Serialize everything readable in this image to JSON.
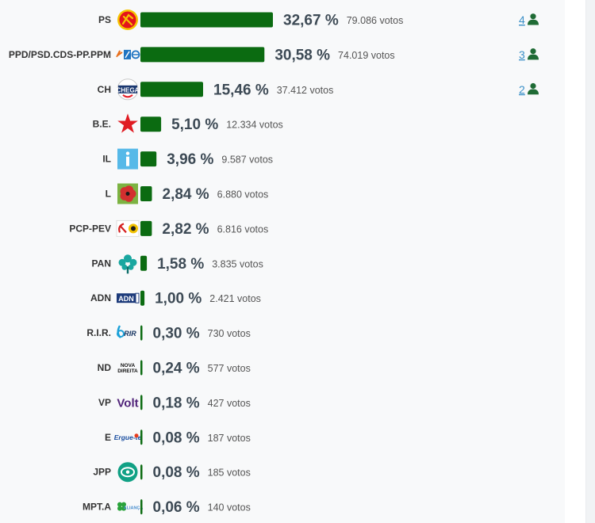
{
  "bar_color": "#0b6b11",
  "seat_icon_color": "#1f6b35",
  "seat_link_color": "#3a8fc7",
  "chart_data": {
    "type": "bar",
    "orientation": "horizontal",
    "xlim": [
      0,
      32.67
    ],
    "categories": [
      "PS",
      "PPD/PSD.CDS-PP.PPM",
      "CH",
      "B.E.",
      "IL",
      "L",
      "PCP-PEV",
      "PAN",
      "ADN",
      "R.I.R.",
      "ND",
      "VP",
      "E",
      "JPP",
      "MPT.A"
    ],
    "percent_labels": [
      "32,67 %",
      "30,58 %",
      "15,46 %",
      "5,10 %",
      "3,96 %",
      "2,84 %",
      "2,82 %",
      "1,58 %",
      "1,00 %",
      "0,30 %",
      "0,24 %",
      "0,18 %",
      "0,08 %",
      "0,08 %",
      "0,06 %"
    ],
    "votes_labels": [
      "79.086 votos",
      "74.019 votos",
      "37.412 votos",
      "12.334 votos",
      "9.587 votos",
      "6.880 votos",
      "6.816 votos",
      "3.835 votos",
      "2.421 votos",
      "730 votos",
      "577 votos",
      "427 votos",
      "187 votos",
      "185 votos",
      "140 votos"
    ],
    "series": [
      {
        "values": [
          32.67,
          30.58,
          15.46,
          5.1,
          3.96,
          2.84,
          2.82,
          1.58,
          1.0,
          0.3,
          0.24,
          0.18,
          0.08,
          0.08,
          0.06
        ],
        "votes": [
          79086,
          74019,
          37412,
          12334,
          9587,
          6880,
          6816,
          3835,
          2421,
          730,
          577,
          427,
          187,
          185,
          140
        ],
        "seats": [
          4,
          3,
          2,
          null,
          null,
          null,
          null,
          null,
          null,
          null,
          null,
          null,
          null,
          null,
          null
        ]
      }
    ],
    "seat_labels": [
      "4",
      "3",
      "2"
    ],
    "logos": [
      "ps-logo",
      "ppd-psd-logo",
      "chega-logo",
      "be-logo",
      "il-logo",
      "livre-logo",
      "pcp-pev-logo",
      "pan-logo",
      "adn-logo",
      "rir-logo",
      "nova-direita-logo",
      "volt-logo",
      "ergue-te-logo",
      "jpp-logo",
      "mpt-logo"
    ],
    "logo_texts": {
      "chega": "CHEGA",
      "adn": "ADN",
      "rir": "RIR",
      "nova_direita": [
        "NOVA",
        "DIREITA"
      ],
      "volt": "Volt",
      "ergue_te": "Ergue-te",
      "mpt": "ALIANÇA"
    }
  }
}
